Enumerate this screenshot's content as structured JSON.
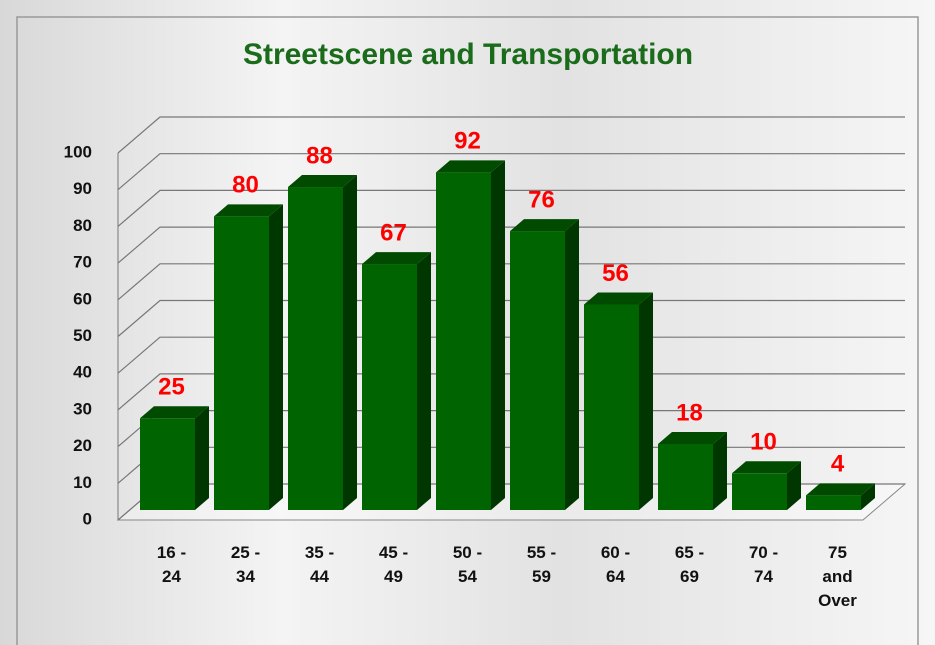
{
  "chart_data": {
    "type": "bar",
    "title": "Streetscene and Transportation",
    "categories": [
      "16 - 24",
      "25 - 34",
      "35 - 44",
      "45 - 49",
      "50 - 54",
      "55 - 59",
      "60 - 64",
      "65 - 69",
      "70 - 74",
      "75 and Over"
    ],
    "values": [
      25,
      80,
      88,
      67,
      92,
      76,
      56,
      18,
      10,
      4
    ],
    "color": "#006400",
    "label_color": "#ff0000",
    "title_color": "#1a6b1a",
    "ylim": [
      0,
      100
    ],
    "yticks": [
      0,
      10,
      20,
      30,
      40,
      50,
      60,
      70,
      80,
      90,
      100
    ],
    "grid": true
  }
}
